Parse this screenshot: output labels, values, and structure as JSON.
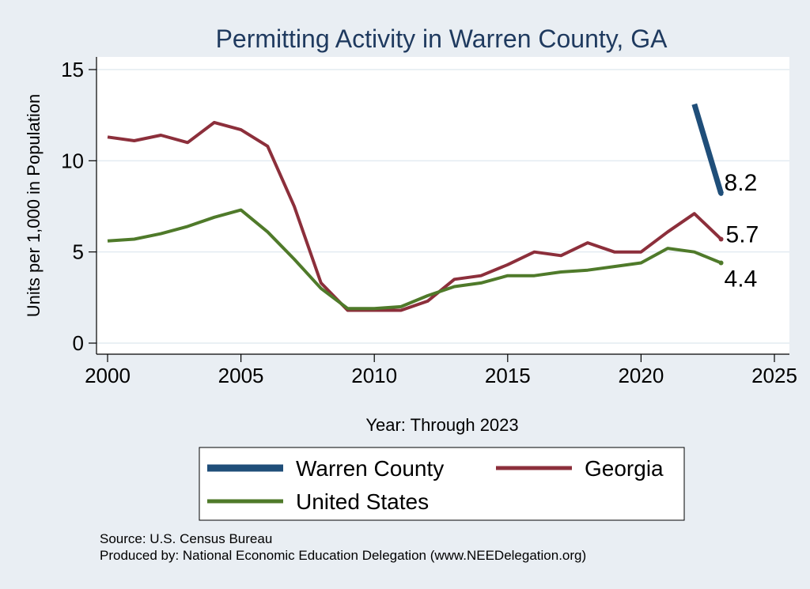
{
  "chart_data": {
    "type": "line",
    "title": "Permitting Activity in Warren County, GA",
    "xlabel": "Year: Through 2023",
    "ylabel": "Units per 1,000 in Population",
    "xlim": [
      2000,
      2025
    ],
    "ylim": [
      0,
      15
    ],
    "x_ticks": [
      2000,
      2005,
      2010,
      2015,
      2020,
      2025
    ],
    "y_ticks": [
      0,
      5,
      10,
      15
    ],
    "grid": true,
    "legend_position": "bottom",
    "series": [
      {
        "name": "Warren County",
        "color": "#1f4e79",
        "x": [
          2022,
          2023
        ],
        "y": [
          13.1,
          8.2
        ],
        "end_label": "8.2"
      },
      {
        "name": "Georgia",
        "color": "#8c2f3b",
        "x": [
          2000,
          2001,
          2002,
          2003,
          2004,
          2005,
          2006,
          2007,
          2008,
          2009,
          2010,
          2011,
          2012,
          2013,
          2014,
          2015,
          2016,
          2017,
          2018,
          2019,
          2020,
          2021,
          2022,
          2023
        ],
        "y": [
          11.3,
          11.1,
          11.4,
          11.0,
          12.1,
          11.7,
          10.8,
          7.5,
          3.3,
          1.8,
          1.8,
          1.8,
          2.3,
          3.5,
          3.7,
          4.3,
          5.0,
          4.8,
          5.5,
          5.0,
          5.0,
          6.1,
          7.1,
          5.7
        ],
        "end_label": "5.7"
      },
      {
        "name": "United States",
        "color": "#4f7a2a",
        "x": [
          2000,
          2001,
          2002,
          2003,
          2004,
          2005,
          2006,
          2007,
          2008,
          2009,
          2010,
          2011,
          2012,
          2013,
          2014,
          2015,
          2016,
          2017,
          2018,
          2019,
          2020,
          2021,
          2022,
          2023
        ],
        "y": [
          5.6,
          5.7,
          6.0,
          6.4,
          6.9,
          7.3,
          6.1,
          4.6,
          3.0,
          1.9,
          1.9,
          2.0,
          2.6,
          3.1,
          3.3,
          3.7,
          3.7,
          3.9,
          4.0,
          4.2,
          4.4,
          5.2,
          5.0,
          4.4
        ],
        "end_label": "4.4"
      }
    ],
    "source_lines": [
      "Source: U.S. Census Bureau",
      "Produced by: National Economic Education Delegation (www.NEEDelegation.org)"
    ]
  }
}
